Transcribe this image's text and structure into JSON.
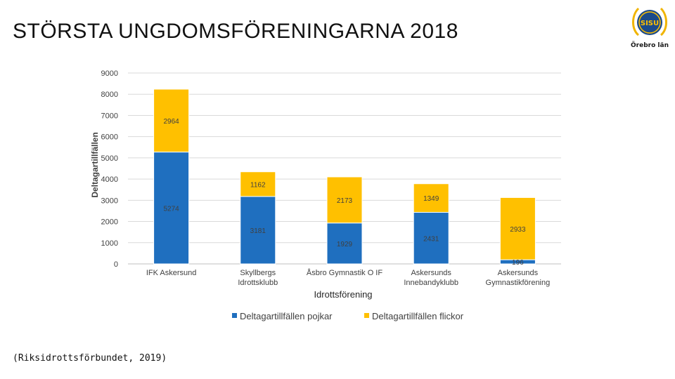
{
  "slide": {
    "title": "STÖRSTA UNGDOMSFÖRENINGARNA 2018",
    "source": "(Riksidrottsförbundet, 2019)"
  },
  "logo": {
    "badge_text": "SISU",
    "region_text": "Örebro län",
    "icon": "sisu-laurel-badge-icon"
  },
  "colors": {
    "pojkar": "#1f6fbf",
    "flickor": "#ffc000",
    "grid": "#d9d9d9",
    "text": "#404040"
  },
  "chart_data": {
    "type": "bar",
    "stacked": true,
    "title": "",
    "xlabel": "Idrottsförening",
    "ylabel": "Deltagartillfällen",
    "ylim": [
      0,
      9000
    ],
    "yticks": [
      0,
      1000,
      2000,
      3000,
      4000,
      5000,
      6000,
      7000,
      8000,
      9000
    ],
    "grid": true,
    "legend_position": "bottom",
    "categories": [
      "IFK Askersund",
      "Skyllbergs Idrottsklubb",
      "Åsbro Gymnastik O IF",
      "Askersunds Innebandyklubb",
      "Askersunds Gymnastikförening"
    ],
    "series": [
      {
        "name": "Deltagartillfällen pojkar",
        "values": [
          5274,
          3181,
          1929,
          2431,
          196
        ]
      },
      {
        "name": "Deltagartillfällen flickor",
        "values": [
          2964,
          1162,
          2173,
          1349,
          2933
        ]
      }
    ]
  }
}
